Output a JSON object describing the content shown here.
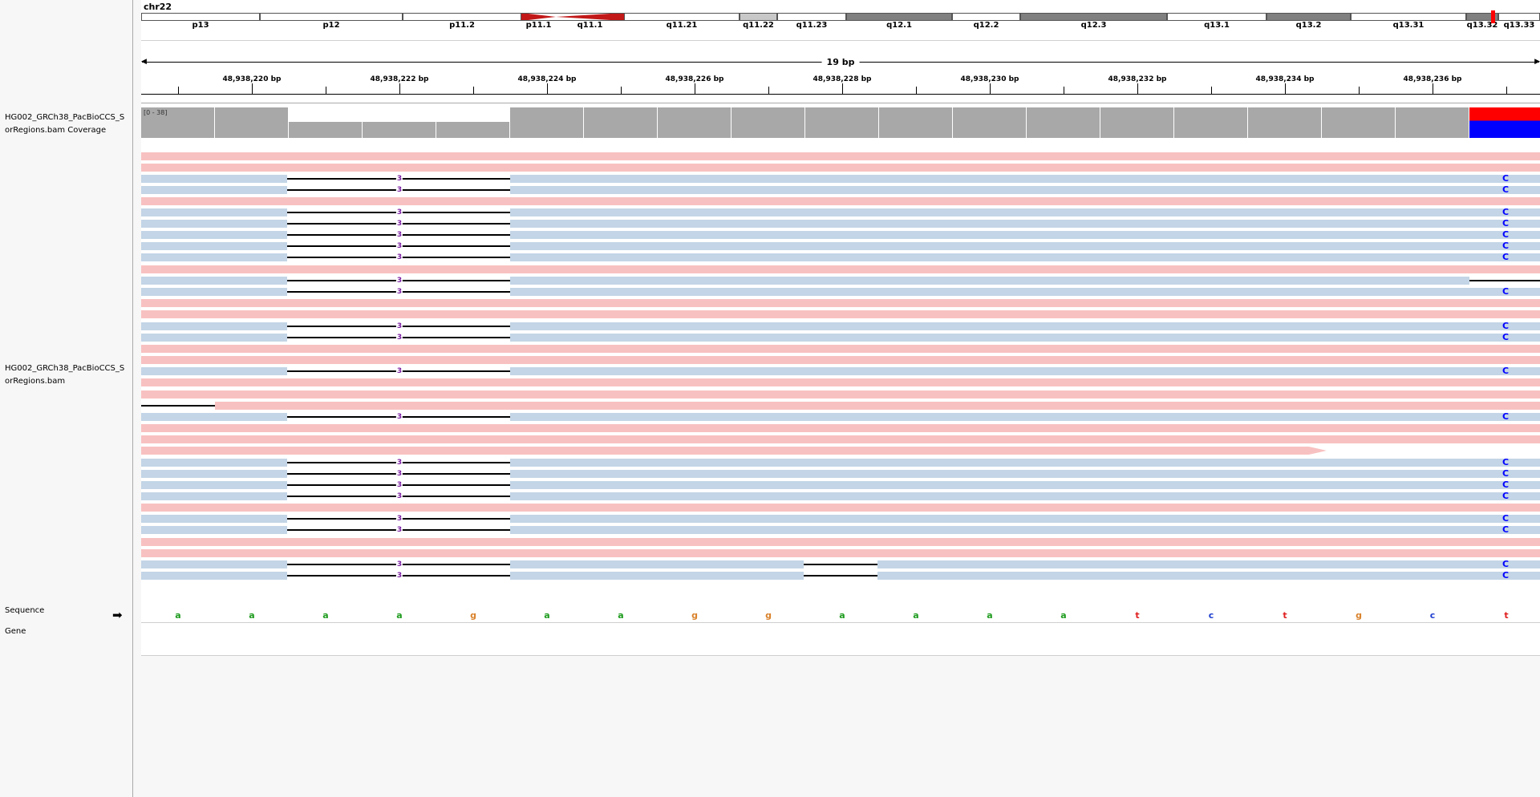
{
  "tracks": {
    "coverage_name": "HG002_GRCh38_PacBioCCS_SorRegions.bam Coverage",
    "coverage_name_line1": "HG002_GRCh38_PacBioCCS_S",
    "coverage_name_line2": "orRegions.bam Coverage",
    "alignment_name_line1": "HG002_GRCh38_PacBioCCS_S",
    "alignment_name_line2": "orRegions.bam",
    "sequence_name": "Sequence",
    "gene_name": "Gene",
    "sequence_arrow": "➡"
  },
  "ideogram": {
    "chromosome": "chr22",
    "bands": [
      "p13",
      "p12",
      "p11.2",
      "p11.1",
      "q11.1",
      "q11.21",
      "q11.22",
      "q11.23",
      "q12.1",
      "q12.2",
      "q12.3",
      "q13.1",
      "q13.2",
      "q13.31",
      "q13.32",
      "q13.33"
    ]
  },
  "ruler": {
    "span_label": "19 bp",
    "tick_labels": [
      "48,938,220 bp",
      "48,938,222 bp",
      "48,938,224 bp",
      "48,938,226 bp",
      "48,938,228 bp",
      "48,938,230 bp",
      "48,938,232 bp",
      "48,938,234 bp",
      "48,938,236 bp"
    ]
  },
  "coverage": {
    "range_label": "[0 - 38]",
    "mismatch_colors": {
      "C": "#0000ff",
      "T": "#ff0000"
    }
  },
  "sequence": {
    "bases": [
      "a",
      "a",
      "a",
      "a",
      "g",
      "a",
      "a",
      "g",
      "g",
      "a",
      "a",
      "a",
      "a",
      "t",
      "c",
      "t",
      "g",
      "c",
      "t"
    ],
    "colors": {
      "a": "#1f9c1f",
      "c": "#1f3fd0",
      "g": "#d9822b",
      "t": "#e02020"
    }
  },
  "reads": {
    "insertion_label": "3",
    "mismatch_base": "C",
    "forward_color": "#f8c1c1",
    "reverse_color": "#c3d5e6"
  }
}
